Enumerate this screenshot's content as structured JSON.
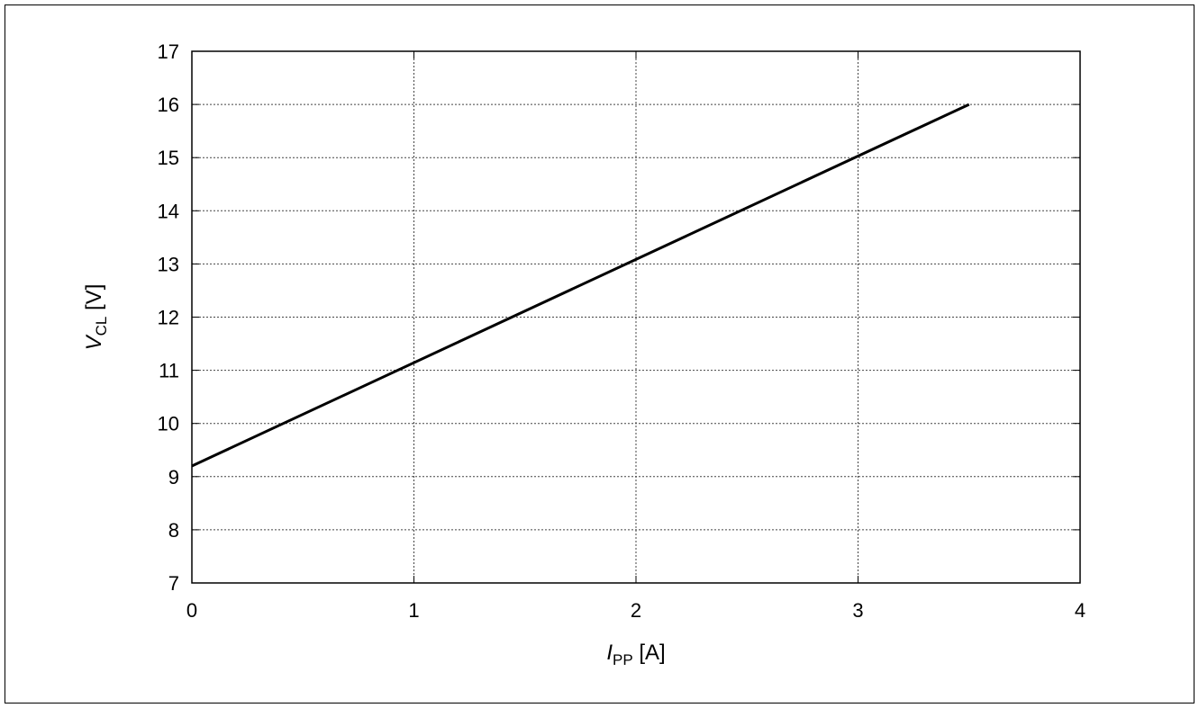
{
  "chart_data": {
    "type": "line",
    "title": "",
    "x_label": {
      "symbol": "I",
      "subscript": "PP",
      "unit": " [A]"
    },
    "y_label": {
      "symbol": "V",
      "subscript": "CL",
      "unit": " [V]"
    },
    "xlim": [
      0,
      4
    ],
    "ylim": [
      7,
      17
    ],
    "x_ticks": [
      0,
      1,
      2,
      3,
      4
    ],
    "y_ticks": [
      7,
      8,
      9,
      10,
      11,
      12,
      13,
      14,
      15,
      16,
      17
    ],
    "grid": true,
    "legend": "none",
    "series": [
      {
        "color": "#000000",
        "x": [
          0,
          3.5
        ],
        "y": [
          9.2,
          16.0
        ]
      }
    ]
  }
}
